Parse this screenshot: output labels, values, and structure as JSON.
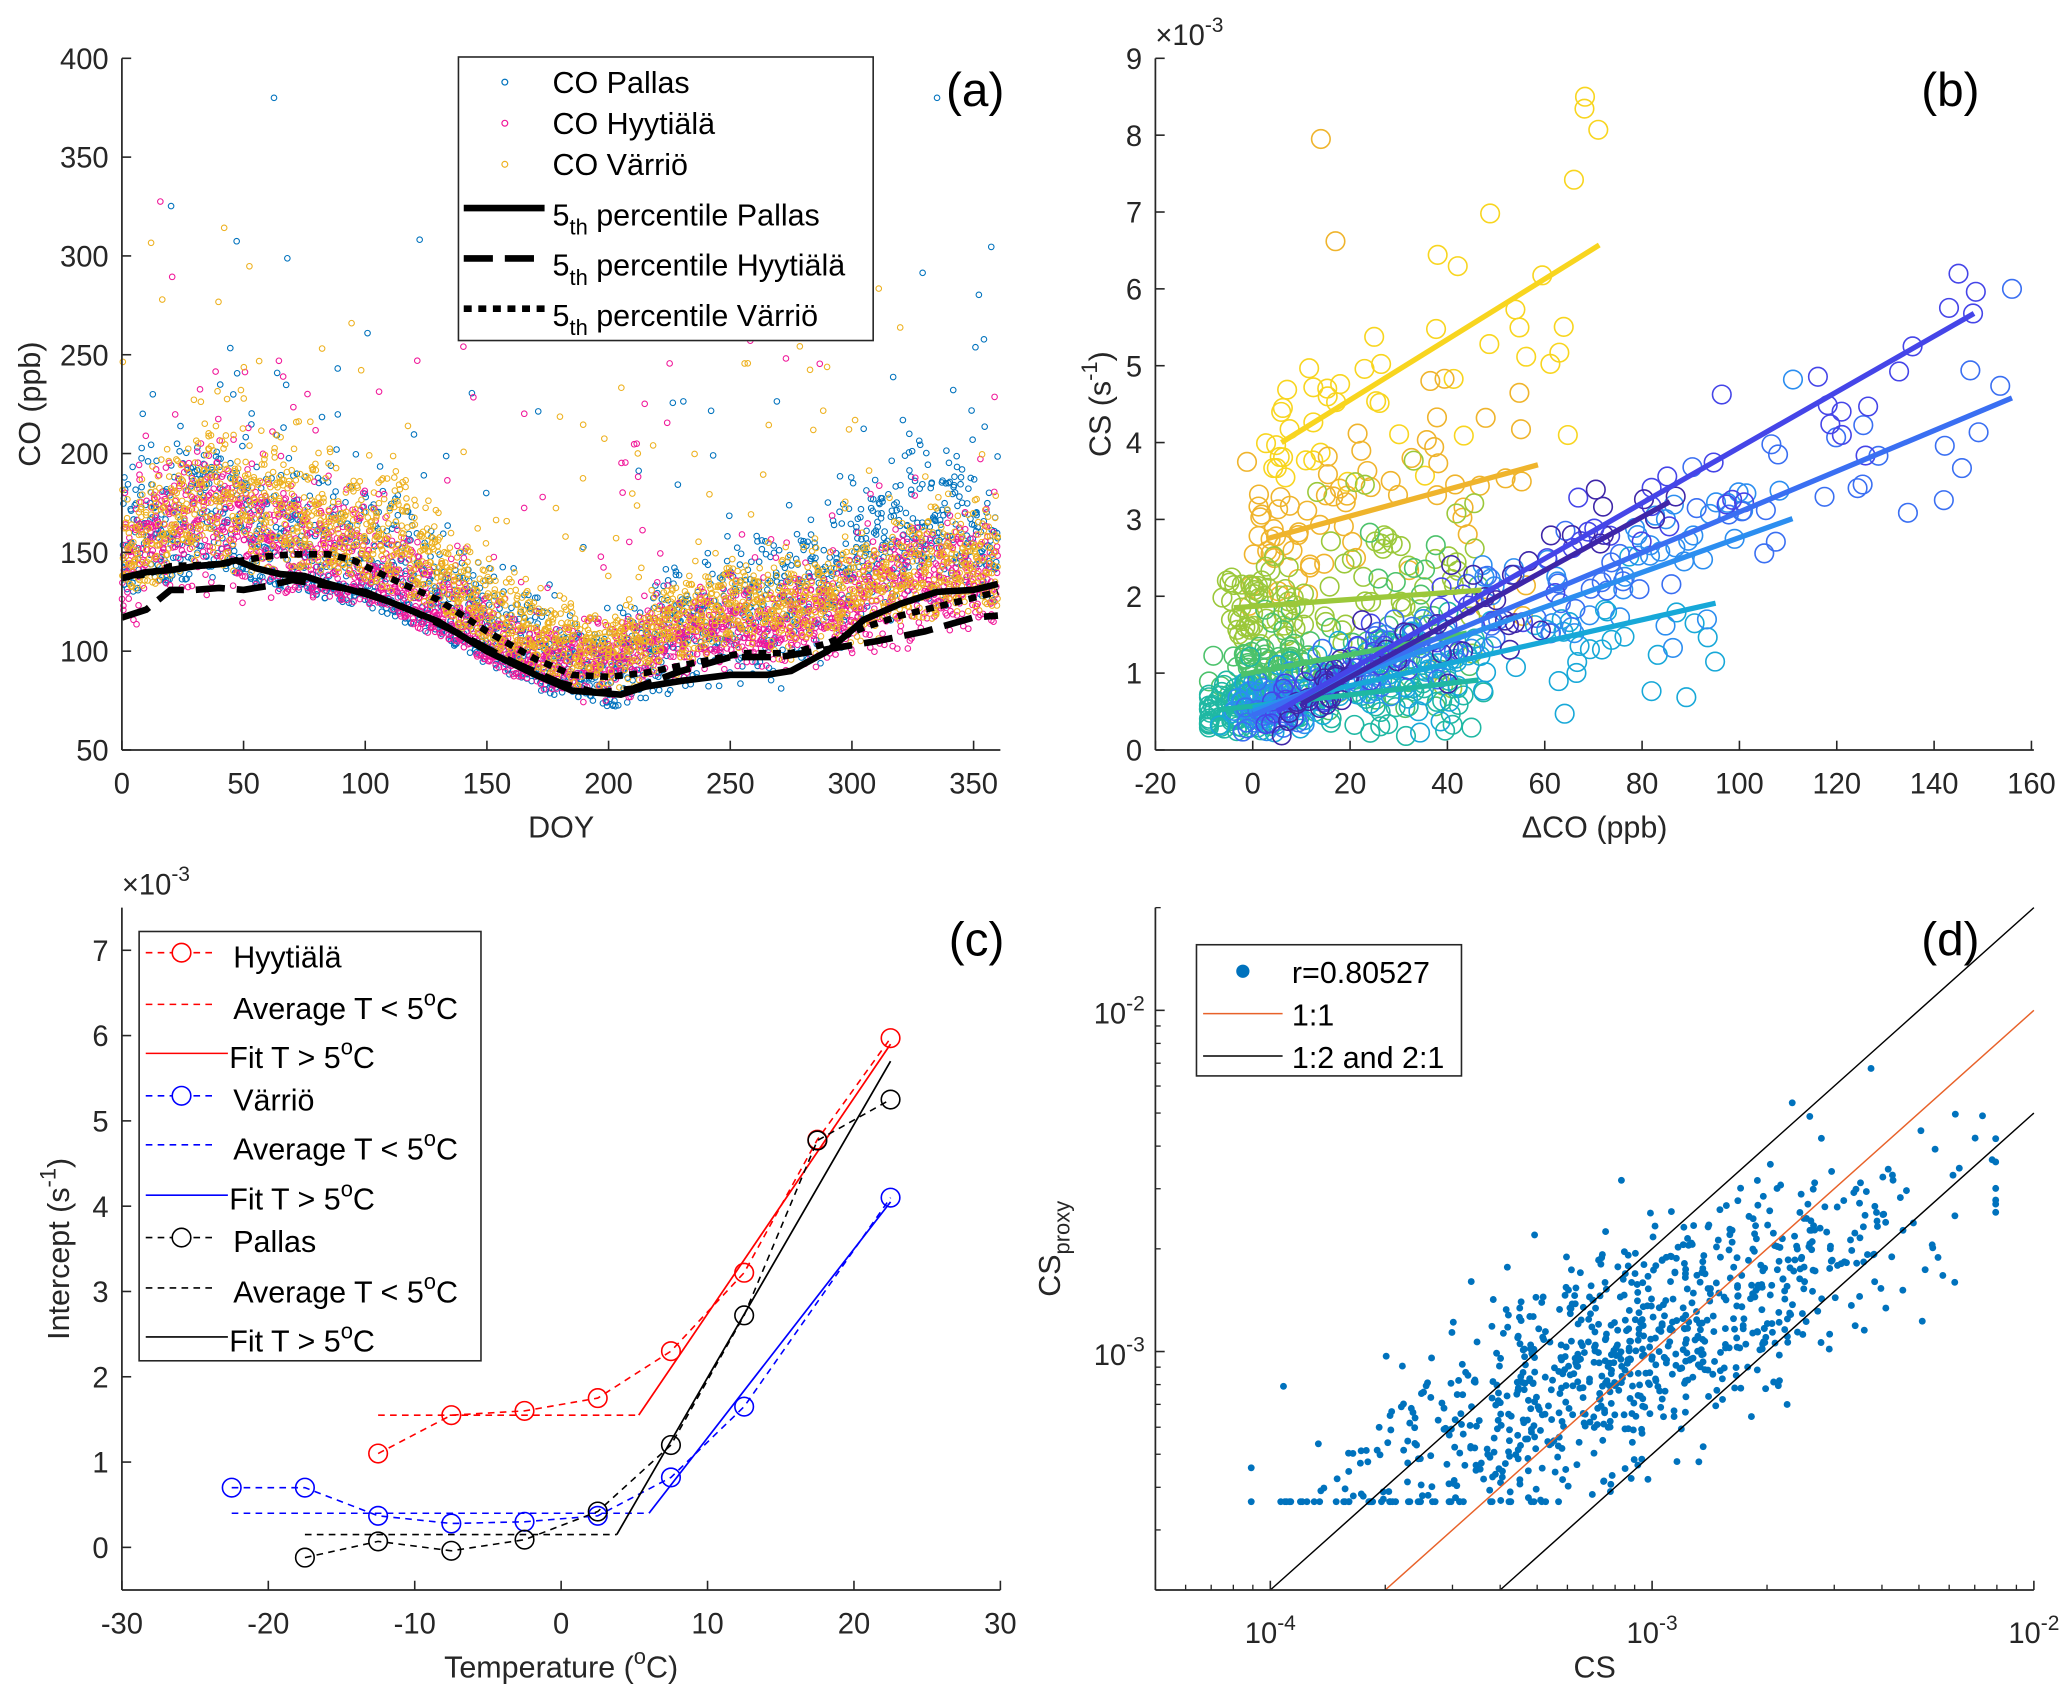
{
  "chart_data": [
    {
      "panel_label": "(a)",
      "type": "scatter",
      "xlabel": [
        {
          "t": "DOY"
        }
      ],
      "ylabel": [
        {
          "t": "CO (ppb)"
        }
      ],
      "xlim": [
        0,
        361
      ],
      "ylim": [
        50,
        400
      ],
      "xticks": [
        0,
        50,
        100,
        150,
        200,
        250,
        300,
        350
      ],
      "yticks": [
        50,
        100,
        150,
        200,
        250,
        300,
        350,
        400
      ],
      "legend_position": "top-right",
      "legend": [
        {
          "label": [
            {
              "t": "CO Pallas"
            }
          ],
          "kind": "marker",
          "color": "#0072bd"
        },
        {
          "label": [
            {
              "t": "CO Hyytiälä"
            }
          ],
          "kind": "marker",
          "color": "#f0199a"
        },
        {
          "label": [
            {
              "t": "CO Värriö"
            }
          ],
          "kind": "marker",
          "color": "#edb120"
        },
        {
          "label": [
            {
              "t": "5"
            },
            {
              "t": "th",
              "sub": true
            },
            {
              "t": " percentile Pallas"
            }
          ],
          "kind": "solid",
          "color": "#000000"
        },
        {
          "label": [
            {
              "t": "5"
            },
            {
              "t": "th",
              "sub": true
            },
            {
              "t": " percentile Hyytiälä"
            }
          ],
          "kind": "dashed",
          "color": "#000000"
        },
        {
          "label": [
            {
              "t": "5"
            },
            {
              "t": "th",
              "sub": true
            },
            {
              "t": " percentile Värriö"
            }
          ],
          "kind": "dotted",
          "color": "#000000"
        }
      ],
      "scatter_series": [
        {
          "name": "CO Pallas",
          "color": "#0072bd",
          "doy": [
            0,
            20,
            40,
            60,
            80,
            100,
            120,
            140,
            160,
            180,
            200,
            220,
            240,
            260,
            280,
            300,
            320,
            340,
            360
          ],
          "typical_ppb": [
            150,
            165,
            170,
            160,
            150,
            145,
            135,
            120,
            105,
            95,
            90,
            105,
            115,
            125,
            130,
            145,
            160,
            165,
            150
          ],
          "spread": 0.14
        },
        {
          "name": "CO Hyytiälä",
          "color": "#f0199a",
          "doy": [
            0,
            20,
            40,
            60,
            80,
            100,
            120,
            140,
            160,
            180,
            200,
            220,
            240,
            260,
            280,
            300,
            320,
            340,
            360
          ],
          "typical_ppb": [
            140,
            165,
            170,
            160,
            150,
            145,
            130,
            115,
            100,
            95,
            95,
            105,
            110,
            115,
            115,
            125,
            135,
            140,
            140
          ],
          "spread": 0.1
        },
        {
          "name": "CO Värriö",
          "color": "#edb120",
          "doy": [
            0,
            20,
            40,
            60,
            80,
            100,
            120,
            140,
            160,
            180,
            200,
            220,
            240,
            260,
            280,
            300,
            320,
            340,
            360
          ],
          "typical_ppb": [
            150,
            170,
            180,
            170,
            165,
            160,
            150,
            130,
            115,
            105,
            100,
            110,
            120,
            125,
            125,
            130,
            140,
            145,
            145
          ],
          "spread": 0.1
        }
      ],
      "percentile_series": [
        {
          "name": "5th percentile Pallas",
          "style": "solid",
          "doy": [
            0,
            10,
            20,
            30,
            40,
            47,
            55,
            65,
            75,
            85,
            100,
            110,
            130,
            150,
            170,
            185,
            195,
            205,
            215,
            230,
            250,
            265,
            275,
            290,
            305,
            320,
            335,
            350,
            360
          ],
          "ppb": [
            137,
            140,
            141,
            143,
            144,
            146,
            142,
            139,
            138,
            134,
            129,
            125,
            115,
            100,
            88,
            80,
            79,
            78,
            82,
            85,
            88,
            88,
            90,
            100,
            116,
            124,
            130,
            131,
            134
          ]
        },
        {
          "name": "5th percentile Hyytiälä",
          "style": "dashed",
          "doy": [
            0,
            10,
            20,
            30,
            40,
            50,
            60,
            70,
            80,
            100,
            120,
            140,
            160,
            180,
            195,
            210,
            230,
            250,
            270,
            290,
            310,
            330,
            350,
            360
          ],
          "ppb": [
            117,
            121,
            131,
            131,
            132,
            131,
            133,
            136,
            134,
            130,
            120,
            108,
            95,
            84,
            79,
            81,
            90,
            97,
            97,
            101,
            105,
            110,
            117,
            118
          ]
        },
        {
          "name": "5th percentile Värriö",
          "style": "dotted",
          "doy": [
            0,
            10,
            20,
            40,
            50,
            60,
            70,
            85,
            95,
            110,
            130,
            150,
            170,
            185,
            200,
            215,
            235,
            255,
            275,
            290,
            305,
            320,
            340,
            360
          ],
          "ppb": [
            137,
            139,
            143,
            144,
            146,
            148,
            149,
            149,
            146,
            137,
            126,
            110,
            96,
            88,
            87,
            89,
            94,
            99,
            99,
            104,
            112,
            118,
            124,
            130
          ]
        }
      ]
    },
    {
      "panel_label": "(b)",
      "type": "scatter",
      "xlabel": [
        {
          "t": "ΔCO (ppb)"
        }
      ],
      "ylabel": [
        {
          "t": "CS (s"
        },
        {
          "t": "-1",
          "sup": true
        },
        {
          "t": ")"
        }
      ],
      "y_multiplier": [
        {
          "t": "×10"
        },
        {
          "t": "-3",
          "sup": true
        }
      ],
      "xlim": [
        -20,
        160
      ],
      "ylim": [
        0,
        9
      ],
      "xticks": [
        -20,
        0,
        20,
        40,
        60,
        80,
        100,
        120,
        140,
        160
      ],
      "yticks": [
        0,
        1,
        2,
        3,
        4,
        5,
        6,
        7,
        8,
        9
      ],
      "groups": [
        {
          "color": "#f8d51f",
          "fit_x": [
            5.9,
            71.2
          ],
          "fit_y": [
            4.0,
            6.57
          ],
          "n": 45,
          "sd": 0.9
        },
        {
          "color": "#efb42c",
          "fit_x": [
            3.0,
            58.6
          ],
          "fit_y": [
            2.75,
            3.71
          ],
          "n": 70,
          "sd": 0.8
        },
        {
          "color": "#9bc83a",
          "fit_x": [
            -3.9,
            47.0
          ],
          "fit_y": [
            1.85,
            2.08
          ],
          "n": 110,
          "sd": 0.7
        },
        {
          "color": "#4cc26b",
          "fit_x": [
            -2.4,
            44.0
          ],
          "fit_y": [
            0.98,
            1.52
          ],
          "n": 110,
          "sd": 0.45
        },
        {
          "color": "#1fb8a3",
          "fit_x": [
            -7.2,
            46.4
          ],
          "fit_y": [
            0.52,
            0.91
          ],
          "n": 150,
          "sd": 0.35
        },
        {
          "color": "#17a8d8",
          "fit_x": [
            0.0,
            95.1
          ],
          "fit_y": [
            0.55,
            1.91
          ],
          "n": 110,
          "sd": 0.4
        },
        {
          "color": "#2c8ef0",
          "fit_x": [
            0.0,
            110.9
          ],
          "fit_y": [
            0.5,
            3.01
          ],
          "n": 90,
          "sd": 0.4
        },
        {
          "color": "#3a6ff2",
          "fit_x": [
            0.0,
            156.0
          ],
          "fit_y": [
            0.45,
            4.58
          ],
          "n": 80,
          "sd": 0.4
        },
        {
          "color": "#4545e8",
          "fit_x": [
            5.0,
            148.2
          ],
          "fit_y": [
            0.5,
            5.68
          ],
          "n": 70,
          "sd": 0.4
        },
        {
          "color": "#3e26a8",
          "fit_x": [
            10.0,
            85.7
          ],
          "fit_y": [
            0.6,
            3.23
          ],
          "n": 50,
          "sd": 0.35
        }
      ],
      "notable_points": [
        {
          "x": 14,
          "y": 7.95,
          "color": "#efb42c"
        },
        {
          "x": 71,
          "y": 8.07,
          "color": "#f8d51f"
        },
        {
          "x": 66,
          "y": 7.42,
          "color": "#f8d51f"
        },
        {
          "x": 17,
          "y": 6.62,
          "color": "#efb42c"
        },
        {
          "x": 148,
          "y": 5.68,
          "color": "#4545e8"
        },
        {
          "x": 156,
          "y": 6.0,
          "color": "#3a6ff2"
        },
        {
          "x": 111,
          "y": 4.82,
          "color": "#2c8ef0"
        },
        {
          "x": 95,
          "y": 1.15,
          "color": "#17a8d8"
        },
        {
          "x": 63,
          "y": 5.17,
          "color": "#f8d51f"
        }
      ]
    },
    {
      "panel_label": "(c)",
      "type": "line",
      "xlabel": [
        {
          "t": "Temperature ("
        },
        {
          "t": "o",
          "sup": true
        },
        {
          "t": "C)"
        }
      ],
      "ylabel": [
        {
          "t": "Intercept (s"
        },
        {
          "t": "-1",
          "sup": true
        },
        {
          "t": ")"
        }
      ],
      "y_multiplier": [
        {
          "t": "×10"
        },
        {
          "t": "-3",
          "sup": true
        }
      ],
      "xlim": [
        -30,
        30
      ],
      "ylim": [
        -0.5,
        7.5
      ],
      "xticks": [
        -30,
        -20,
        -10,
        0,
        10,
        20,
        30
      ],
      "yticks": [
        0,
        1,
        2,
        3,
        4,
        5,
        6,
        7
      ],
      "legend_position": "top-left",
      "series": [
        {
          "name": "Hyytiälä",
          "color": "#ff0000",
          "x": [
            -12.5,
            -7.5,
            -2.5,
            2.5,
            7.5,
            12.5,
            17.5,
            22.5
          ],
          "y": [
            1.1,
            1.55,
            1.6,
            1.75,
            2.3,
            3.22,
            4.78,
            5.97
          ],
          "average_below_5C": {
            "x": [
              -12.5,
              5.3
            ],
            "y": 1.55
          },
          "fit_above_5C": {
            "x": [
              5.3,
              22.5
            ],
            "y": [
              1.55,
              5.9
            ]
          }
        },
        {
          "name": "Värriö",
          "color": "#0000ff",
          "x": [
            -22.5,
            -17.5,
            -12.5,
            -7.5,
            -2.5,
            2.5,
            7.5,
            12.5,
            22.5
          ],
          "y": [
            0.7,
            0.7,
            0.37,
            0.28,
            0.3,
            0.37,
            0.82,
            1.65,
            4.1
          ],
          "average_below_5C": {
            "x": [
              -22.5,
              6.0
            ],
            "y": 0.4
          },
          "fit_above_5C": {
            "x": [
              6.0,
              22.5
            ],
            "y": [
              0.4,
              4.05
            ]
          }
        },
        {
          "name": "Pallas",
          "color": "#000000",
          "x": [
            -17.5,
            -12.5,
            -7.5,
            -2.5,
            2.5,
            7.5,
            12.5,
            17.5,
            22.5
          ],
          "y": [
            -0.12,
            0.07,
            -0.04,
            0.09,
            0.42,
            1.2,
            2.72,
            4.77,
            5.25
          ],
          "average_below_5C": {
            "x": [
              -17.5,
              3.8
            ],
            "y": 0.15
          },
          "fit_above_5C": {
            "x": [
              3.8,
              22.5
            ],
            "y": [
              0.15,
              5.7
            ]
          }
        }
      ],
      "legend": [
        {
          "label": [
            {
              "t": "Hyytiälä"
            }
          ],
          "kind": "dashed-marker",
          "color": "#ff0000"
        },
        {
          "label": [
            {
              "t": "Average T < 5"
            },
            {
              "t": "o",
              "sup": true
            },
            {
              "t": "C"
            }
          ],
          "kind": "dashed",
          "color": "#ff0000"
        },
        {
          "label": [
            {
              "t": "Fit T > 5"
            },
            {
              "t": "o",
              "sup": true
            },
            {
              "t": "C"
            }
          ],
          "kind": "solid",
          "color": "#ff0000"
        },
        {
          "label": [
            {
              "t": "Värriö"
            }
          ],
          "kind": "dashed-marker",
          "color": "#0000ff"
        },
        {
          "label": [
            {
              "t": "Average T < 5"
            },
            {
              "t": "o",
              "sup": true
            },
            {
              "t": "C"
            }
          ],
          "kind": "dashed",
          "color": "#0000ff"
        },
        {
          "label": [
            {
              "t": "Fit T > 5"
            },
            {
              "t": "o",
              "sup": true
            },
            {
              "t": "C"
            }
          ],
          "kind": "solid",
          "color": "#0000ff"
        },
        {
          "label": [
            {
              "t": "Pallas"
            }
          ],
          "kind": "dashed-marker",
          "color": "#000000"
        },
        {
          "label": [
            {
              "t": "Average T < 5"
            },
            {
              "t": "o",
              "sup": true
            },
            {
              "t": "C"
            }
          ],
          "kind": "dashed",
          "color": "#000000"
        },
        {
          "label": [
            {
              "t": "Fit T > 5"
            },
            {
              "t": "o",
              "sup": true
            },
            {
              "t": "C"
            }
          ],
          "kind": "solid",
          "color": "#000000"
        }
      ]
    },
    {
      "panel_label": "(d)",
      "type": "scatter",
      "scale": "log-log",
      "xlabel": [
        {
          "t": "CS"
        }
      ],
      "ylabel": [
        {
          "t": "CS"
        },
        {
          "t": "proxy",
          "sub": true
        }
      ],
      "xlim": [
        5e-05,
        0.01
      ],
      "ylim": [
        0.0002,
        0.02
      ],
      "xticks": [
        {
          "value": 0.0001,
          "label": [
            {
              "t": "10"
            },
            {
              "t": "-4",
              "sup": true
            }
          ]
        },
        {
          "value": 0.001,
          "label": [
            {
              "t": "10"
            },
            {
              "t": "-3",
              "sup": true
            }
          ]
        },
        {
          "value": 0.01,
          "label": [
            {
              "t": "10"
            },
            {
              "t": "-2",
              "sup": true
            }
          ]
        }
      ],
      "yticks": [
        {
          "value": 0.001,
          "label": [
            {
              "t": "10"
            },
            {
              "t": "-3",
              "sup": true
            }
          ]
        },
        {
          "value": 0.01,
          "label": [
            {
              "t": "10"
            },
            {
              "t": "-2",
              "sup": true
            }
          ]
        }
      ],
      "legend_position": "top-left",
      "legend": [
        {
          "label": [
            {
              "t": "r=0.80527"
            }
          ],
          "kind": "dot",
          "color": "#0072bd"
        },
        {
          "label": [
            {
              "t": "1:1"
            }
          ],
          "kind": "solid",
          "color": "#e8622a"
        },
        {
          "label": [
            {
              "t": "1:2 and 2:1"
            }
          ],
          "kind": "solid",
          "color": "#000000"
        }
      ],
      "r": 0.80527,
      "n_points": 900,
      "points_summary": {
        "log10_cs_mean": -3.05,
        "log10_cs_sd": 0.38,
        "proxy_floor": 0.000363,
        "log_slope": 0.55
      },
      "reference_lines": [
        {
          "name": "1:1",
          "ratio": 1,
          "color": "#e8622a"
        },
        {
          "name": "2:1",
          "ratio": 2,
          "color": "#000000"
        },
        {
          "name": "1:2",
          "ratio": 0.5,
          "color": "#000000"
        }
      ]
    }
  ]
}
